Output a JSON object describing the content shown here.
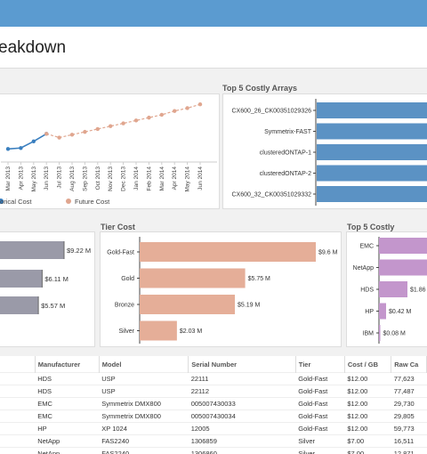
{
  "header": {
    "title": "eakdown"
  },
  "colors": {
    "topbar": "#5b9bd0",
    "historical": "#3a7fbf",
    "future": "#e0a68f",
    "arrays": "#5b92c4",
    "manufacturer": "#9a9aa8",
    "tier": "#e5ae98",
    "vendors": "#c396cc"
  },
  "cost_trend": {
    "legend_historical": "torical Cost",
    "legend_future": "Future Cost",
    "months": [
      "Mar 2013",
      "Apr 2013",
      "May 2013",
      "Jun 2013",
      "Jul 2013",
      "Aug 2013",
      "Sep 2013",
      "Oct 2013",
      "Nov 2013",
      "Dec 2013",
      "Jan 2014",
      "Feb 2014",
      "Mar 2014",
      "Apr 2014",
      "May 2014",
      "Jun 2014"
    ]
  },
  "top_arrays": {
    "title": "Top 5 Costly Arrays",
    "labels": [
      "CX600_26_CK00351029326",
      "Symmetrix-FAST",
      "clusteredONTAP-1",
      "clusteredONTAP-2",
      "CX600_32_CK00351029332"
    ]
  },
  "manufacturer_cost": {
    "labels": [
      "$9.22 M",
      "$6.11 M",
      "$5.57 M"
    ]
  },
  "tier_cost": {
    "title": "Tier Cost",
    "labels": [
      "Gold-Fast",
      "Gold",
      "Bronze",
      "Silver"
    ],
    "values": [
      "$9.6 M",
      "$5.75 M",
      "$5.19 M",
      "$2.03 M"
    ]
  },
  "top_vendors": {
    "title": "Top 5 Costly Vendors",
    "labels": [
      "EMC",
      "NetApp",
      "HDS",
      "HP",
      "IBM"
    ],
    "values": [
      "$1.86",
      "$0.42 M",
      "$0.08 M"
    ]
  },
  "chart_data": [
    {
      "type": "line",
      "x": [
        "Mar 2013",
        "Apr 2013",
        "May 2013",
        "Jun 2013",
        "Jul 2013",
        "Aug 2013",
        "Sep 2013",
        "Oct 2013",
        "Nov 2013",
        "Dec 2013",
        "Jan 2014",
        "Feb 2014",
        "Mar 2014",
        "Apr 2014",
        "May 2014",
        "Jun 2014"
      ],
      "series": [
        {
          "name": "Historical Cost",
          "values": [
            1.0,
            1.1,
            1.8,
            2.6,
            null,
            null,
            null,
            null,
            null,
            null,
            null,
            null,
            null,
            null,
            null,
            null
          ]
        },
        {
          "name": "Future Cost",
          "values": [
            null,
            null,
            null,
            2.6,
            2.2,
            2.5,
            2.8,
            3.1,
            3.4,
            3.7,
            4.0,
            4.3,
            4.6,
            5.0,
            5.3,
            5.7
          ]
        }
      ]
    },
    {
      "type": "bar",
      "title": "Top 5 Costly Arrays",
      "categories": [
        "CX600_26_CK00351029326",
        "Symmetrix-FAST",
        "clusteredONTAP-1",
        "clusteredONTAP-2",
        "CX600_32_CK00351029332"
      ],
      "values": [
        1,
        1,
        1,
        1,
        1
      ]
    },
    {
      "type": "bar",
      "categories": [
        "",
        "",
        ""
      ],
      "values": [
        9.22,
        6.11,
        5.57
      ]
    },
    {
      "type": "bar",
      "title": "Tier Cost",
      "categories": [
        "Gold-Fast",
        "Gold",
        "Bronze",
        "Silver"
      ],
      "values": [
        9.6,
        5.75,
        5.19,
        2.03
      ]
    },
    {
      "type": "bar",
      "title": "Top 5 Costly Vendors",
      "categories": [
        "EMC",
        "NetApp",
        "HDS",
        "HP",
        "IBM"
      ],
      "values": [
        null,
        null,
        1.86,
        0.42,
        0.08
      ]
    }
  ],
  "table": {
    "headers": [
      "Manufacturer",
      "Model",
      "Serial Number",
      "Tier",
      "Cost / GB",
      "Raw Ca"
    ],
    "rows": [
      [
        "HDS",
        "USP",
        "22111",
        "Gold-Fast",
        "$12.00",
        "77,623"
      ],
      [
        "HDS",
        "USP",
        "22112",
        "Gold-Fast",
        "$12.00",
        "77,487"
      ],
      [
        "EMC",
        "Symmetrix DMX800",
        "005007430033",
        "Gold-Fast",
        "$12.00",
        "29,730"
      ],
      [
        "EMC",
        "Symmetrix DMX800",
        "005007430034",
        "Gold-Fast",
        "$12.00",
        "29,805"
      ],
      [
        "HP",
        "XP 1024",
        "12005",
        "Gold-Fast",
        "$12.00",
        "59,773"
      ],
      [
        "NetApp",
        "FAS2240",
        "1306859",
        "Silver",
        "$7.00",
        "16,511"
      ],
      [
        "NetApp",
        "FAS2240",
        "1306860",
        "Silver",
        "$7.00",
        "12,871"
      ]
    ]
  }
}
